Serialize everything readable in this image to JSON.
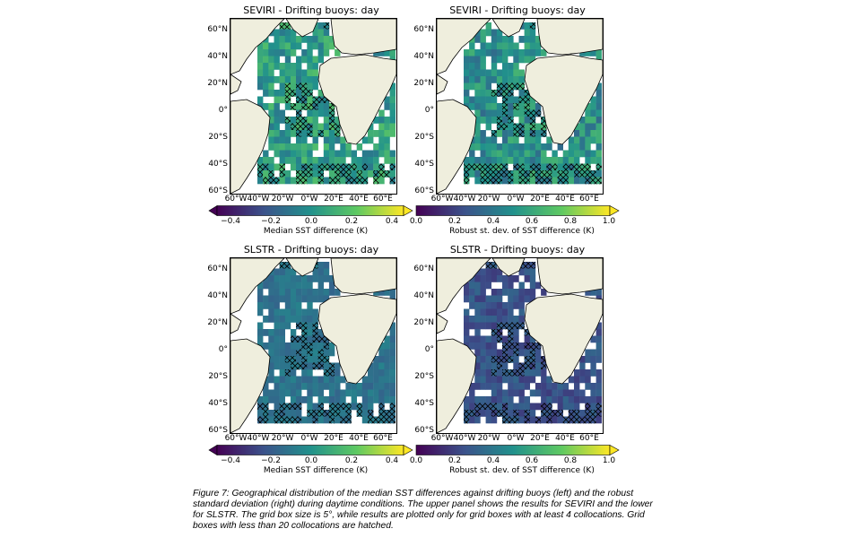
{
  "panels": [
    {
      "title": "SEVIRI - Drifting buoys: day",
      "scale": "median",
      "cbar_ticks": [
        "−0.4",
        "−0.2",
        "0.0",
        "0.2",
        "0.4"
      ],
      "cbar_label": "Median SST difference (K)"
    },
    {
      "title": "SEVIRI - Drifting buoys: day",
      "scale": "robust",
      "cbar_ticks": [
        "0.0",
        "0.2",
        "0.4",
        "0.6",
        "0.8",
        "1.0"
      ],
      "cbar_label": "Robust st. dev. of SST difference (K)"
    },
    {
      "title": "SLSTR - Drifting buoys: day",
      "scale": "median",
      "cbar_ticks": [
        "−0.4",
        "−0.2",
        "0.0",
        "0.2",
        "0.4"
      ],
      "cbar_label": "Median SST difference (K)"
    },
    {
      "title": "SLSTR - Drifting buoys: day",
      "scale": "robust",
      "cbar_ticks": [
        "0.0",
        "0.2",
        "0.4",
        "0.6",
        "0.8",
        "1.0"
      ],
      "cbar_label": "Robust st. dev. of SST difference (K)"
    }
  ],
  "lat_labels": [
    "60°N",
    "40°N",
    "20°N",
    "0°",
    "20°S",
    "40°S",
    "60°S"
  ],
  "lon_labels": [
    "60°W",
    "40°W",
    "20°W",
    "0°W",
    "20°E",
    "40°E",
    "60°E"
  ],
  "colors": {
    "land": "#efeedd",
    "ocean": "#ffffff",
    "viridis": [
      "#440154",
      "#3b528b",
      "#21918c",
      "#5ec962",
      "#fde725"
    ]
  },
  "caption": "Figure 7: Geographical distribution of the median SST differences against drifting buoys (left) and the robust standard deviation (right) during daytime conditions. The upper panel shows the results for SEVIRI and the lower for SLSTR. The grid box size is 5°, while results are plotted only for grid boxes with at least 4 collocations. Grid boxes with less than 20 collocations are hatched."
}
